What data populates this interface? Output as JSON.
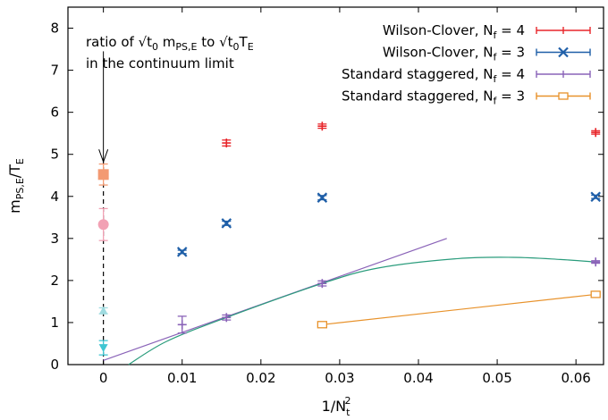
{
  "chart_data": {
    "type": "scatter",
    "xlabel": {
      "main": "1/N",
      "sub": "t",
      "sup": "2"
    },
    "ylabel": {
      "main": "m",
      "sub1": "PS,E",
      "mid": "/T",
      "sub2": "E"
    },
    "xlim": [
      -0.0045,
      0.0635
    ],
    "ylim": [
      0,
      8.5
    ],
    "x_ticks": [
      0,
      0.01,
      0.02,
      0.03,
      0.04,
      0.05,
      0.06
    ],
    "x_tick_labels": [
      "0",
      "0.01",
      "0.02",
      "0.03",
      "0.04",
      "0.05",
      "0.06"
    ],
    "y_ticks": [
      0,
      1,
      2,
      3,
      4,
      5,
      6,
      7,
      8
    ],
    "y_tick_labels": [
      "0",
      "1",
      "2",
      "3",
      "4",
      "5",
      "6",
      "7",
      "8"
    ],
    "grid": false,
    "legend_position": "top-right",
    "legend": [
      {
        "label": "Wilson-Clover, N",
        "sub": "f",
        "tail": " = 4",
        "marker": "plus",
        "color": "#e8262b"
      },
      {
        "label": "Wilson-Clover, N",
        "sub": "f",
        "tail": " = 3",
        "marker": "cross",
        "color": "#1f5fa8"
      },
      {
        "label": "Standard staggered, N",
        "sub": "f",
        "tail": " = 4",
        "marker": "plus",
        "color": "#8a63b8"
      },
      {
        "label": "Standard staggered, N",
        "sub": "f",
        "tail": " = 3",
        "marker": "box",
        "color": "#e8922b"
      }
    ],
    "series": [
      {
        "name": "Wilson-Clover, Nf = 4",
        "marker": "plus",
        "color": "#e8262b",
        "points": [
          {
            "x": 0.015625,
            "y": 5.27,
            "err": 0.07
          },
          {
            "x": 0.02778,
            "y": 5.67,
            "err": 0.05
          },
          {
            "x": 0.0625,
            "y": 5.52,
            "err": 0.04
          }
        ]
      },
      {
        "name": "Wilson-Clover, Nf = 3",
        "marker": "cross",
        "color": "#1f5fa8",
        "points": [
          {
            "x": 0.01,
            "y": 2.68,
            "err": 0.04
          },
          {
            "x": 0.015625,
            "y": 3.36,
            "err": 0.05
          },
          {
            "x": 0.02778,
            "y": 3.97,
            "err": 0.05
          },
          {
            "x": 0.0625,
            "y": 3.99,
            "err": 0.04
          }
        ]
      },
      {
        "name": "Standard staggered, Nf = 4",
        "marker": "plus",
        "color": "#8a63b8",
        "points": [
          {
            "x": 0.01,
            "y": 0.95,
            "err": 0.2
          },
          {
            "x": 0.015625,
            "y": 1.12,
            "err": 0.06
          },
          {
            "x": 0.02778,
            "y": 1.93,
            "err": 0.06
          },
          {
            "x": 0.0625,
            "y": 2.44,
            "err": 0.03
          }
        ]
      },
      {
        "name": "Standard staggered, Nf = 3",
        "marker": "box",
        "color": "#e8922b",
        "points": [
          {
            "x": 0.02778,
            "y": 0.95,
            "err": 0.03
          },
          {
            "x": 0.0625,
            "y": 1.67,
            "err": 0.04
          }
        ]
      }
    ],
    "continuum_points": [
      {
        "x": 0,
        "y": 4.52,
        "err": 0.25,
        "marker": "square",
        "color": "#f39a72"
      },
      {
        "x": 0,
        "y": 3.33,
        "err": 0.38,
        "marker": "circle",
        "color": "#f2a1b4"
      },
      {
        "x": 0,
        "y": 1.28,
        "err": 0.07,
        "marker": "triangle-up",
        "color": "#9fdbe0"
      },
      {
        "x": 0,
        "y": 0.4,
        "err": 0.17,
        "marker": "triangle-down",
        "color": "#3fc6d2"
      }
    ],
    "fit_lines": [
      {
        "kind": "line",
        "color": "#8a63b8",
        "points": [
          [
            0,
            0.1
          ],
          [
            0.0436,
            3.0
          ]
        ]
      },
      {
        "kind": "curve",
        "color": "#2a9c7c",
        "points": [
          [
            0.0032,
            0
          ],
          [
            0.008,
            0.55
          ],
          [
            0.015625,
            1.12
          ],
          [
            0.02778,
            1.93
          ],
          [
            0.035,
            2.3
          ],
          [
            0.045,
            2.52
          ],
          [
            0.052,
            2.55
          ],
          [
            0.058,
            2.5
          ],
          [
            0.0625,
            2.44
          ]
        ]
      },
      {
        "kind": "line",
        "color": "#e8922b",
        "points": [
          [
            0.02778,
            0.95
          ],
          [
            0.0625,
            1.67
          ]
        ]
      }
    ],
    "annotation": {
      "lines": [
        "ratio of √t",
        "0",
        " m",
        "PS,E",
        " to √t",
        "0",
        "T",
        "E",
        "in the continuum limit"
      ],
      "arrow_from": [
        0,
        7.45
      ],
      "arrow_to": [
        0,
        4.82
      ]
    }
  }
}
